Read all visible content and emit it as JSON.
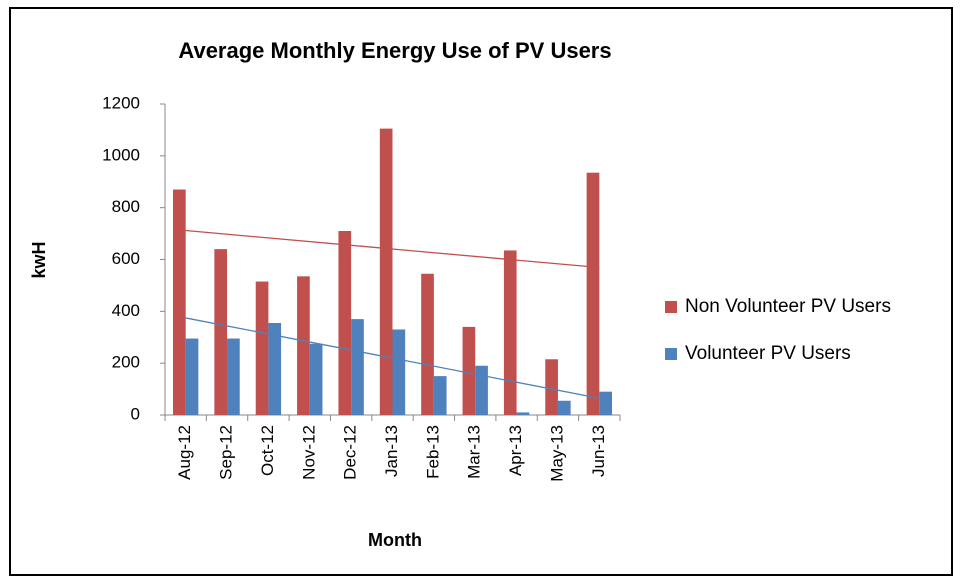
{
  "chart_data": {
    "type": "bar",
    "title": "Average Monthly Energy Use of PV Users",
    "x_label": "Month",
    "y_label": "kwH",
    "categories": [
      "Aug-12",
      "Sep-12",
      "Oct-12",
      "Nov-12",
      "Dec-12",
      "Jan-13",
      "Feb-13",
      "Mar-13",
      "Apr-13",
      "May-13",
      "Jun-13"
    ],
    "series": [
      {
        "name": "Non Volunteer PV Users",
        "color": "#c0504d",
        "values": [
          870,
          640,
          515,
          535,
          710,
          1105,
          545,
          340,
          635,
          215,
          935
        ]
      },
      {
        "name": "Volunteer PV Users",
        "color": "#4f81bd",
        "values": [
          295,
          295,
          355,
          275,
          370,
          330,
          150,
          190,
          10,
          55,
          90
        ]
      }
    ],
    "ylim": [
      0,
      1200
    ],
    "yticks": [
      0,
      200,
      400,
      600,
      800,
      1000,
      1200
    ],
    "trendline": true,
    "grid": false,
    "legend": "right"
  }
}
